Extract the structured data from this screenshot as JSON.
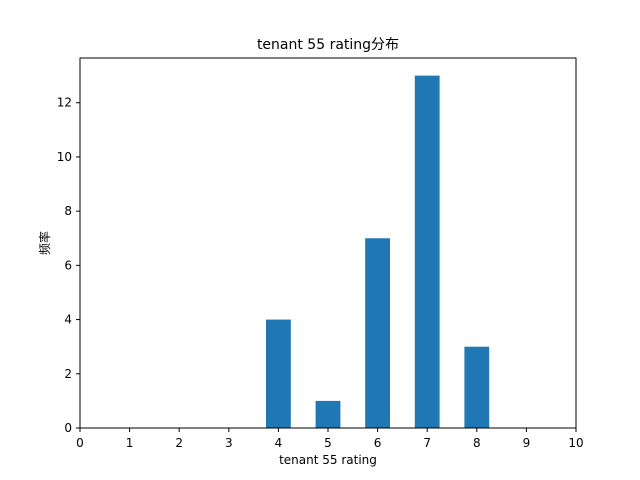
{
  "chart_data": {
    "type": "bar",
    "title": "tenant 55 rating分布",
    "xlabel": "tenant 55 rating",
    "ylabel": "频率",
    "x": [
      4,
      5,
      6,
      7,
      8
    ],
    "values": [
      4,
      1,
      7,
      13,
      3
    ],
    "bar_width": 0.5,
    "xlim": [
      0,
      10
    ],
    "ylim": [
      0,
      13.65
    ],
    "xticks": [
      0,
      1,
      2,
      3,
      4,
      5,
      6,
      7,
      8,
      9,
      10
    ],
    "yticks": [
      0,
      2,
      4,
      6,
      8,
      10,
      12
    ],
    "grid": false,
    "bar_color": "#1f77b4"
  }
}
